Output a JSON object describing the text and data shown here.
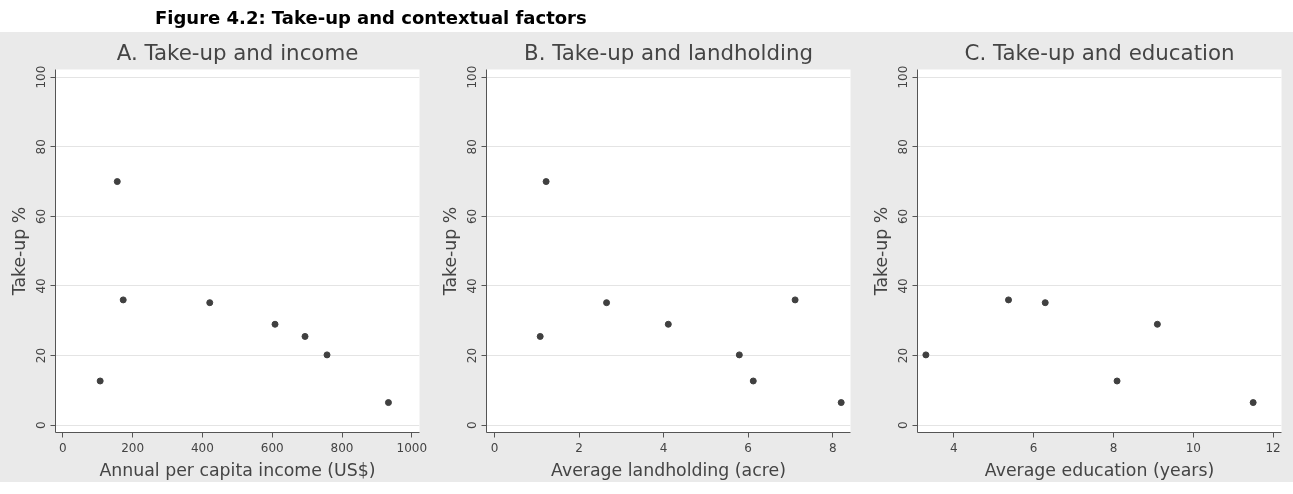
{
  "chart_data": [
    {
      "type": "scatter",
      "title": "A. Take-up and income",
      "xlabel": "Annual per capita income (US$)",
      "ylabel": "Take-up %",
      "annotations": [
        "Figure 4.2: Take-up and contextual factors"
      ],
      "x": [
        107,
        156,
        173,
        421,
        608,
        694,
        757,
        933
      ],
      "series": [
        {
          "color": "#404040",
          "values": [
            12.7,
            70,
            36,
            35.2,
            29,
            25.5,
            20.2,
            6.5
          ]
        }
      ],
      "xlim": [
        -21,
        1022
      ],
      "xticks": [
        0,
        200,
        400,
        600,
        800,
        1000
      ],
      "ylim": [
        -2.1,
        102.2
      ],
      "yticks": [
        0,
        20,
        40,
        60,
        80,
        100
      ],
      "grid": "y",
      "marker": "circle"
    },
    {
      "type": "scatter",
      "title": "B. Take-up and landholding",
      "xlabel": "Average landholding (acre)",
      "ylabel": "Take-up %",
      "x": [
        1.08,
        1.22,
        2.65,
        4.11,
        5.79,
        6.12,
        7.11,
        8.2
      ],
      "series": [
        {
          "color": "#404040",
          "values": [
            25.5,
            70,
            35.2,
            29,
            20.2,
            12.7,
            36,
            6.5
          ]
        }
      ],
      "xlim": [
        -0.19,
        8.42
      ],
      "xticks": [
        0,
        2,
        4,
        6,
        8
      ],
      "ylim": [
        -2.1,
        102.2
      ],
      "yticks": [
        0,
        20,
        40,
        60,
        80,
        100
      ],
      "grid": "y",
      "marker": "circle"
    },
    {
      "type": "scatter",
      "title": "C. Take-up and education",
      "xlabel": "Average education (years)",
      "ylabel": "Take-up %",
      "x": [
        3.3,
        5.37,
        6.29,
        8.09,
        9.1,
        11.5
      ],
      "series": [
        {
          "color": "#404040",
          "values": [
            20.2,
            36,
            35.2,
            12.7,
            29,
            6.5
          ]
        }
      ],
      "xlim": [
        3.09,
        12.21
      ],
      "xticks": [
        4,
        6,
        8,
        10,
        12
      ],
      "ylim": [
        -2.1,
        102.2
      ],
      "yticks": [
        0,
        20,
        40,
        60,
        80,
        100
      ],
      "grid": "y",
      "marker": "circle"
    }
  ]
}
